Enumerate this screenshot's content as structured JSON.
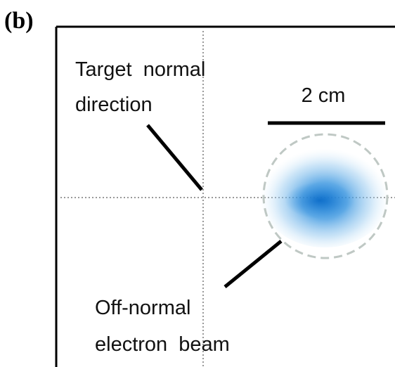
{
  "panel_label": "(b)",
  "annotations": [
    {
      "lines": [
        "Target  normal",
        "direction"
      ]
    },
    {
      "lines": [
        "Off-normal",
        "electron  beam"
      ]
    }
  ],
  "scale_bar": {
    "label": "2 cm"
  }
}
